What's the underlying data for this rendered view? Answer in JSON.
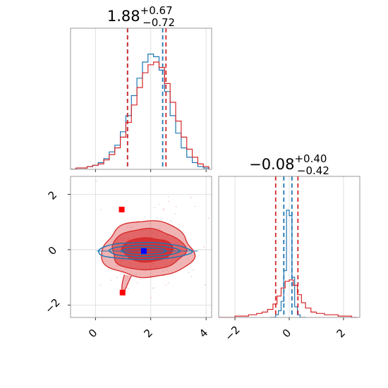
{
  "chart_data": [
    {
      "type": "histogram",
      "panel": "marginal-x",
      "title": {
        "value": "1.88",
        "sup": "+0.67",
        "sub": "−0.72"
      },
      "xlim": [
        -0.9,
        4.2
      ],
      "ylim": [
        0,
        1.0
      ],
      "grid": true,
      "series": [
        {
          "color": "#1f77b4",
          "bins": [
            [
              -0.9,
              0.0
            ],
            [
              -0.7,
              0.01
            ],
            [
              -0.5,
              0.01
            ],
            [
              -0.3,
              0.02
            ],
            [
              -0.1,
              0.03
            ],
            [
              0.1,
              0.05
            ],
            [
              0.3,
              0.08
            ],
            [
              0.5,
              0.13
            ],
            [
              0.7,
              0.18
            ],
            [
              0.9,
              0.28
            ],
            [
              1.1,
              0.4
            ],
            [
              1.3,
              0.55
            ],
            [
              1.5,
              0.68
            ],
            [
              1.7,
              0.8
            ],
            [
              1.9,
              0.86
            ],
            [
              2.1,
              0.84
            ],
            [
              2.3,
              0.74
            ],
            [
              2.5,
              0.58
            ],
            [
              2.7,
              0.4
            ],
            [
              2.9,
              0.27
            ],
            [
              3.1,
              0.16
            ],
            [
              3.3,
              0.09
            ],
            [
              3.5,
              0.05
            ],
            [
              3.7,
              0.02
            ],
            [
              3.9,
              0.01
            ]
          ],
          "quantile_lines": [
            1.16,
            2.43
          ]
        },
        {
          "color": "#d62728",
          "bins": [
            [
              -0.9,
              0.0
            ],
            [
              -0.7,
              0.01
            ],
            [
              -0.5,
              0.01
            ],
            [
              -0.3,
              0.02
            ],
            [
              -0.1,
              0.03
            ],
            [
              0.1,
              0.04
            ],
            [
              0.3,
              0.07
            ],
            [
              0.5,
              0.11
            ],
            [
              0.7,
              0.16
            ],
            [
              0.9,
              0.24
            ],
            [
              1.1,
              0.35
            ],
            [
              1.3,
              0.48
            ],
            [
              1.5,
              0.61
            ],
            [
              1.7,
              0.72
            ],
            [
              1.9,
              0.78
            ],
            [
              2.1,
              0.8
            ],
            [
              2.3,
              0.76
            ],
            [
              2.5,
              0.64
            ],
            [
              2.7,
              0.5
            ],
            [
              2.9,
              0.36
            ],
            [
              3.1,
              0.24
            ],
            [
              3.3,
              0.15
            ],
            [
              3.5,
              0.09
            ],
            [
              3.7,
              0.04
            ],
            [
              3.9,
              0.02
            ]
          ],
          "quantile_lines": [
            1.16,
            2.55
          ]
        }
      ],
      "xticks": [
        0,
        2,
        4
      ]
    },
    {
      "type": "histogram",
      "panel": "marginal-y",
      "title": {
        "value": "−0.08",
        "sup": "+0.40",
        "sub": "−0.42"
      },
      "xlim": [
        -2.6,
        2.6
      ],
      "ylim": [
        0,
        1.0
      ],
      "grid": true,
      "xticks": [
        -2,
        0,
        2
      ],
      "xticklabels": [
        "−2",
        "0",
        "2"
      ],
      "series": [
        {
          "color": "#1f77b4",
          "bins": [
            [
              -0.7,
              0.0
            ],
            [
              -0.5,
              0.02
            ],
            [
              -0.4,
              0.05
            ],
            [
              -0.3,
              0.12
            ],
            [
              -0.2,
              0.35
            ],
            [
              -0.1,
              0.8
            ],
            [
              0.0,
              0.76
            ],
            [
              0.1,
              0.3
            ],
            [
              0.2,
              0.08
            ],
            [
              0.3,
              0.02
            ],
            [
              0.4,
              0.0
            ]
          ],
          "quantile_lines": [
            -0.2,
            0.1
          ]
        },
        {
          "color": "#d62728",
          "bins": [
            [
              -2.6,
              0.0
            ],
            [
              -2.0,
              0.01
            ],
            [
              -1.5,
              0.02
            ],
            [
              -1.2,
              0.03
            ],
            [
              -1.0,
              0.04
            ],
            [
              -0.8,
              0.06
            ],
            [
              -0.6,
              0.1
            ],
            [
              -0.45,
              0.16
            ],
            [
              -0.3,
              0.22
            ],
            [
              -0.15,
              0.27
            ],
            [
              0.0,
              0.28
            ],
            [
              0.15,
              0.24
            ],
            [
              0.3,
              0.17
            ],
            [
              0.45,
              0.11
            ],
            [
              0.6,
              0.07
            ],
            [
              0.8,
              0.04
            ],
            [
              1.0,
              0.03
            ],
            [
              1.3,
              0.02
            ],
            [
              1.8,
              0.01
            ],
            [
              2.3,
              0.0
            ]
          ],
          "quantile_lines": [
            -0.5,
            0.32
          ]
        }
      ]
    },
    {
      "type": "contour",
      "panel": "joint",
      "xlim": [
        -0.9,
        4.2
      ],
      "ylim": [
        -2.45,
        2.65
      ],
      "xticks": [
        0,
        2,
        4
      ],
      "yticks": [
        -2,
        0,
        2
      ],
      "xticklabels": [
        "0",
        "2",
        "4"
      ],
      "yticklabels": [
        "−2",
        "0",
        "2"
      ],
      "grid": true,
      "series": [
        {
          "color": "#d62728",
          "center": [
            1.88,
            0
          ],
          "filled": true
        },
        {
          "color": "#1f77b4",
          "center": [
            1.75,
            -0.05
          ],
          "filled": false
        }
      ],
      "markers": [
        {
          "color": "#ff0000",
          "x": 0.95,
          "y": 1.45
        },
        {
          "color": "#ff0000",
          "x": 0.98,
          "y": -1.55
        },
        {
          "color": "#0000ff",
          "x": 1.75,
          "y": -0.05
        }
      ]
    }
  ]
}
